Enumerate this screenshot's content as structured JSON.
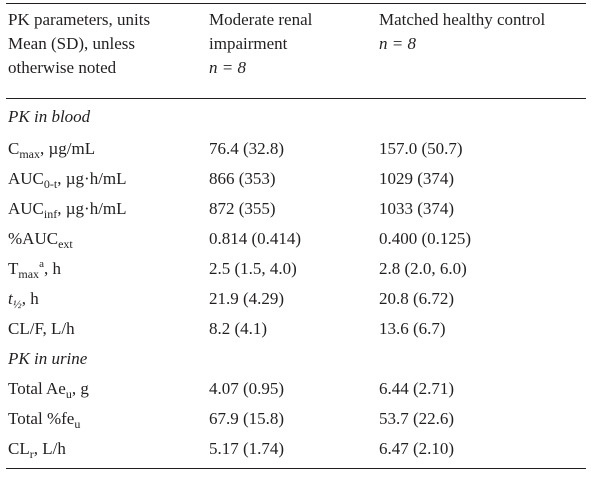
{
  "header": {
    "col1": [
      "PK parameters, units",
      "Mean (SD), unless",
      "otherwise noted"
    ],
    "col2": [
      "Moderate renal",
      "impairment",
      "n = 8"
    ],
    "col3": [
      "Matched healthy control",
      "n = 8"
    ]
  },
  "sections": {
    "blood": "PK in blood",
    "urine": "PK in urine"
  },
  "rows": {
    "cmax": {
      "label_main": "C",
      "label_sub": "max",
      "label_rest": ", µg/mL",
      "renal": "76.4 (32.8)",
      "healthy": "157.0 (50.7)"
    },
    "auc0t": {
      "label_main": "AUC",
      "label_sub": "0-t",
      "label_rest": ", µg·h/mL",
      "renal": "866 (353)",
      "healthy": "1029 (374)"
    },
    "aucinf": {
      "label_main": "AUC",
      "label_sub": "inf",
      "label_rest": ", µg·h/mL",
      "renal": "872 (355)",
      "healthy": "1033 (374)"
    },
    "aucext": {
      "label_main": "%AUC",
      "label_sub": "ext",
      "label_rest": "",
      "renal": "0.814 (0.414)",
      "healthy": "0.400 (0.125)"
    },
    "tmax": {
      "label_main": "T",
      "label_sub": "max",
      "label_sup": "a",
      "label_rest": ", h",
      "renal": "2.5 (1.5, 4.0)",
      "healthy": "2.8 (2.0, 6.0)"
    },
    "thalf": {
      "label_main": "t",
      "label_sub": "½",
      "label_rest": ", h",
      "renal": "21.9 (4.29)",
      "healthy": "20.8 (6.72)"
    },
    "clf": {
      "label_main": "CL/F, L/h",
      "renal": "8.2 (4.1)",
      "healthy": "13.6 (6.7)"
    },
    "aeu": {
      "label_main": "Total Ae",
      "label_sub": "u",
      "label_rest": ", g",
      "renal": "4.07 (0.95)",
      "healthy": "6.44 (2.71)"
    },
    "feu": {
      "label_main": "Total %fe",
      "label_sub": "u",
      "label_rest": "",
      "renal": "67.9 (15.8)",
      "healthy": "53.7 (22.6)"
    },
    "clr": {
      "label_main": "CL",
      "label_sub": "r",
      "label_rest": ", L/h",
      "renal": "5.17 (1.74)",
      "healthy": "6.47 (2.10)"
    }
  }
}
